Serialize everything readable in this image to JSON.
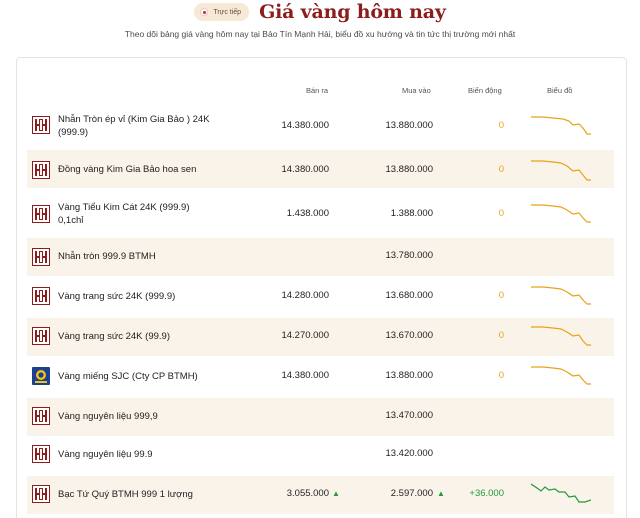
{
  "header": {
    "live_badge": "Trực tiếp",
    "title": "Giá vàng hôm nay",
    "subtitle": "Theo dõi bảng giá vàng hôm nay tại Bảo Tín Mạnh Hải, biểu đồ xu hướng và tin tức thị trường mới nhất"
  },
  "table": {
    "columns": {
      "sell": "Bán ra",
      "buy": "Mua vào",
      "change": "Biến động",
      "chart": "Biểu đồ"
    },
    "rows": [
      {
        "name_line1": "Nhẫn Tròn ép vỉ (Kim Gia Bảo ) 24K",
        "name_line2": "(999.9)",
        "logo": "btmh-logo",
        "sell": "14.380.000",
        "buy": "13.880.000",
        "change": "0",
        "trend": "down"
      },
      {
        "name_line1": "Đồng vàng Kim Gia Bảo hoa sen",
        "name_line2": "",
        "logo": "btmh-logo",
        "sell": "14.380.000",
        "buy": "13.880.000",
        "change": "0",
        "trend": "down"
      },
      {
        "name_line1": "Vàng Tiểu Kim Cát 24K (999.9)",
        "name_line2": "0,1chỉ",
        "logo": "btmh-logo",
        "sell": "1.438.000",
        "buy": "1.388.000",
        "change": "0",
        "trend": "down"
      },
      {
        "name_line1": "Nhẫn tròn 999.9 BTMH",
        "name_line2": "",
        "logo": "btmh-logo",
        "sell": "",
        "buy": "13.780.000",
        "change": "",
        "trend": "none"
      },
      {
        "name_line1": "Vàng trang sức 24K (999.9)",
        "name_line2": "",
        "logo": "btmh-logo",
        "sell": "14.280.000",
        "buy": "13.680.000",
        "change": "0",
        "trend": "down"
      },
      {
        "name_line1": "Vàng trang sức 24K (99.9)",
        "name_line2": "",
        "logo": "btmh-logo",
        "sell": "14.270.000",
        "buy": "13.670.000",
        "change": "0",
        "trend": "down"
      },
      {
        "name_line1": "Vàng miếng SJC (Cty CP BTMH)",
        "name_line2": "",
        "logo": "sjc-logo",
        "sell": "14.380.000",
        "buy": "13.880.000",
        "change": "0",
        "trend": "down"
      },
      {
        "name_line1": "Vàng nguyên liệu 999,9",
        "name_line2": "",
        "logo": "btmh-logo",
        "sell": "",
        "buy": "13.470.000",
        "change": "",
        "trend": "none"
      },
      {
        "name_line1": "Vàng nguyên liệu 99.9",
        "name_line2": "",
        "logo": "btmh-logo",
        "sell": "",
        "buy": "13.420.000",
        "change": "",
        "trend": "none"
      },
      {
        "name_line1": "Bạc Tứ Quý BTMH 999 1 lượng",
        "name_line2": "",
        "logo": "btmh-logo",
        "sell": "3.055.000",
        "buy": "2.597.000",
        "change": "+36.000",
        "trend": "up-mixed",
        "sell_arrow": "▲",
        "buy_arrow": "▲"
      }
    ]
  },
  "colors": {
    "brand_red": "#8c1d1d",
    "row_alt_bg": "#faf3e9",
    "neutral_change": "#e8a317",
    "positive_change": "#1f9b3a",
    "sjc_blue": "#1c3f94"
  }
}
